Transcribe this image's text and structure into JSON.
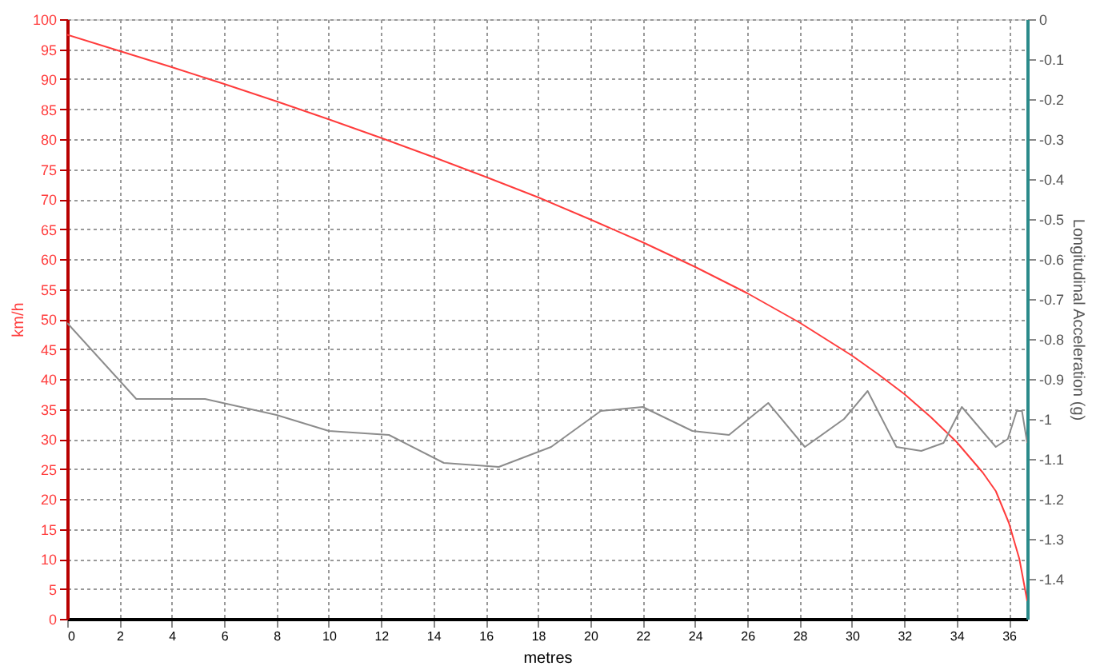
{
  "chart_data": {
    "type": "line",
    "xlabel": "metres",
    "ylabel": "km/h",
    "y2label": "Longitudinal Acceleration (g)",
    "xlim": [
      0,
      36.7
    ],
    "xticks": [
      0,
      2,
      4,
      6,
      8,
      10,
      12,
      14,
      16,
      18,
      20,
      22,
      24,
      26,
      28,
      30,
      32,
      34,
      36
    ],
    "ylim": [
      0,
      100
    ],
    "yticks": [
      0,
      5,
      10,
      15,
      20,
      25,
      30,
      35,
      40,
      45,
      50,
      55,
      60,
      65,
      70,
      75,
      80,
      85,
      90,
      95,
      100
    ],
    "y2lim": [
      -1.5,
      0
    ],
    "y2ticks": [
      0,
      -0.1,
      -0.2,
      -0.3,
      -0.4,
      -0.5,
      -0.6,
      -0.7,
      -0.8,
      -0.9,
      -1,
      -1.1,
      -1.2,
      -1.3,
      -1.4
    ],
    "grid": true,
    "line_style": "solid",
    "series": [
      {
        "color": "#ff3c3c",
        "x": [
          0,
          2,
          4,
          6,
          8,
          10,
          12,
          14,
          16,
          18,
          20,
          22,
          24,
          26,
          28,
          30,
          31,
          32,
          33,
          34,
          35,
          35.5,
          36,
          36.4,
          36.7
        ],
        "values": [
          97.4,
          94.7,
          92.0,
          89.2,
          86.3,
          83.3,
          80.2,
          77.0,
          73.7,
          70.3,
          66.6,
          62.8,
          58.7,
          54.3,
          49.4,
          43.9,
          40.8,
          37.5,
          33.7,
          29.5,
          24.4,
          21.3,
          16.0,
          10.0,
          3.0
        ]
      },
      {
        "color": "#8c8c8c",
        "axis": "y2",
        "x": [
          0,
          2.64,
          5.27,
          8.0,
          10.0,
          12.3,
          14.4,
          16.5,
          18.5,
          20.4,
          22.0,
          23.9,
          25.3,
          26.8,
          28.2,
          29.7,
          30.6,
          31.7,
          32.65,
          33.5,
          34.2,
          35.5,
          35.96,
          36.3,
          36.5,
          36.7
        ],
        "values": [
          -0.76,
          -0.95,
          -0.95,
          -0.99,
          -1.03,
          -1.04,
          -1.11,
          -1.12,
          -1.07,
          -0.98,
          -0.97,
          -1.03,
          -1.04,
          -0.96,
          -1.07,
          -1.0,
          -0.93,
          -1.07,
          -1.08,
          -1.06,
          -0.97,
          -1.07,
          -1.05,
          -0.98,
          -0.98,
          -1.06
        ]
      }
    ]
  }
}
